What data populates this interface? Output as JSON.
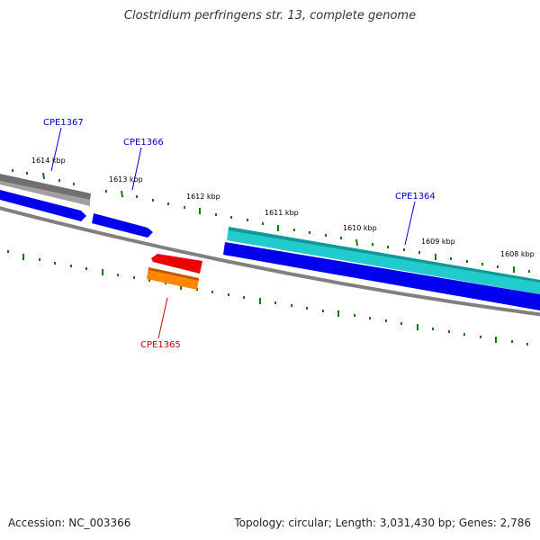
{
  "title": "Clostridium perfringens str. 13, complete genome",
  "footer": {
    "accession": "Accession: NC_003366",
    "stats": "Topology: circular; Length: 3,031,430 bp; Genes: 2,786"
  },
  "kbp_labels": [
    "1614 kbp",
    "1613 kbp",
    "1612 kbp",
    "1611 kbp",
    "1610 kbp",
    "1609 kbp",
    "1608 kbp"
  ],
  "genes": [
    {
      "name": "CPE1367",
      "color": "#0000cc"
    },
    {
      "name": "CPE1366",
      "color": "#0000cc"
    },
    {
      "name": "CPE1364",
      "color": "#0000cc"
    },
    {
      "name": "CPE1365",
      "color": "#cc0000"
    }
  ],
  "colors": {
    "backbone": "#808080",
    "forward_cds": "#0000ee",
    "reverse_cds": "#ee0000",
    "rna_teal": "#22cccc",
    "pseudo_gray": "#666666",
    "orange": "#ff8800",
    "ticks": "#117711"
  }
}
